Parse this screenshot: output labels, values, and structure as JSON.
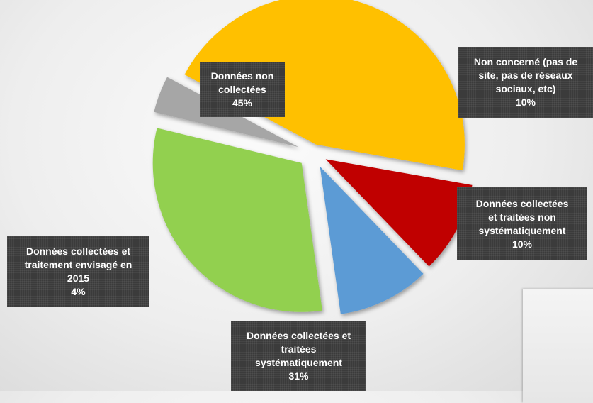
{
  "chart_data": {
    "type": "pie",
    "exploded": true,
    "categories": [
      "Données non\ncollectées",
      "Non concerné (pas de\nsite, pas de réseaux\nsociaux, etc)",
      "Données collectées\net traitées non\nsystématiquement",
      "Données collectées et\ntraitées\nsystématiquement",
      "Données collectées et\ntraitement envisagé en\n2015"
    ],
    "values": [
      45,
      10,
      10,
      31,
      4
    ],
    "value_labels": [
      "45%",
      "10%",
      "10%",
      "31%",
      "4%"
    ],
    "colors": [
      "#FFC000",
      "#C00000",
      "#5B9BD5",
      "#92D050",
      "#A6A6A6"
    ],
    "title": "",
    "legend": "none",
    "data_labels": "dark boxes with category name and percentage"
  }
}
